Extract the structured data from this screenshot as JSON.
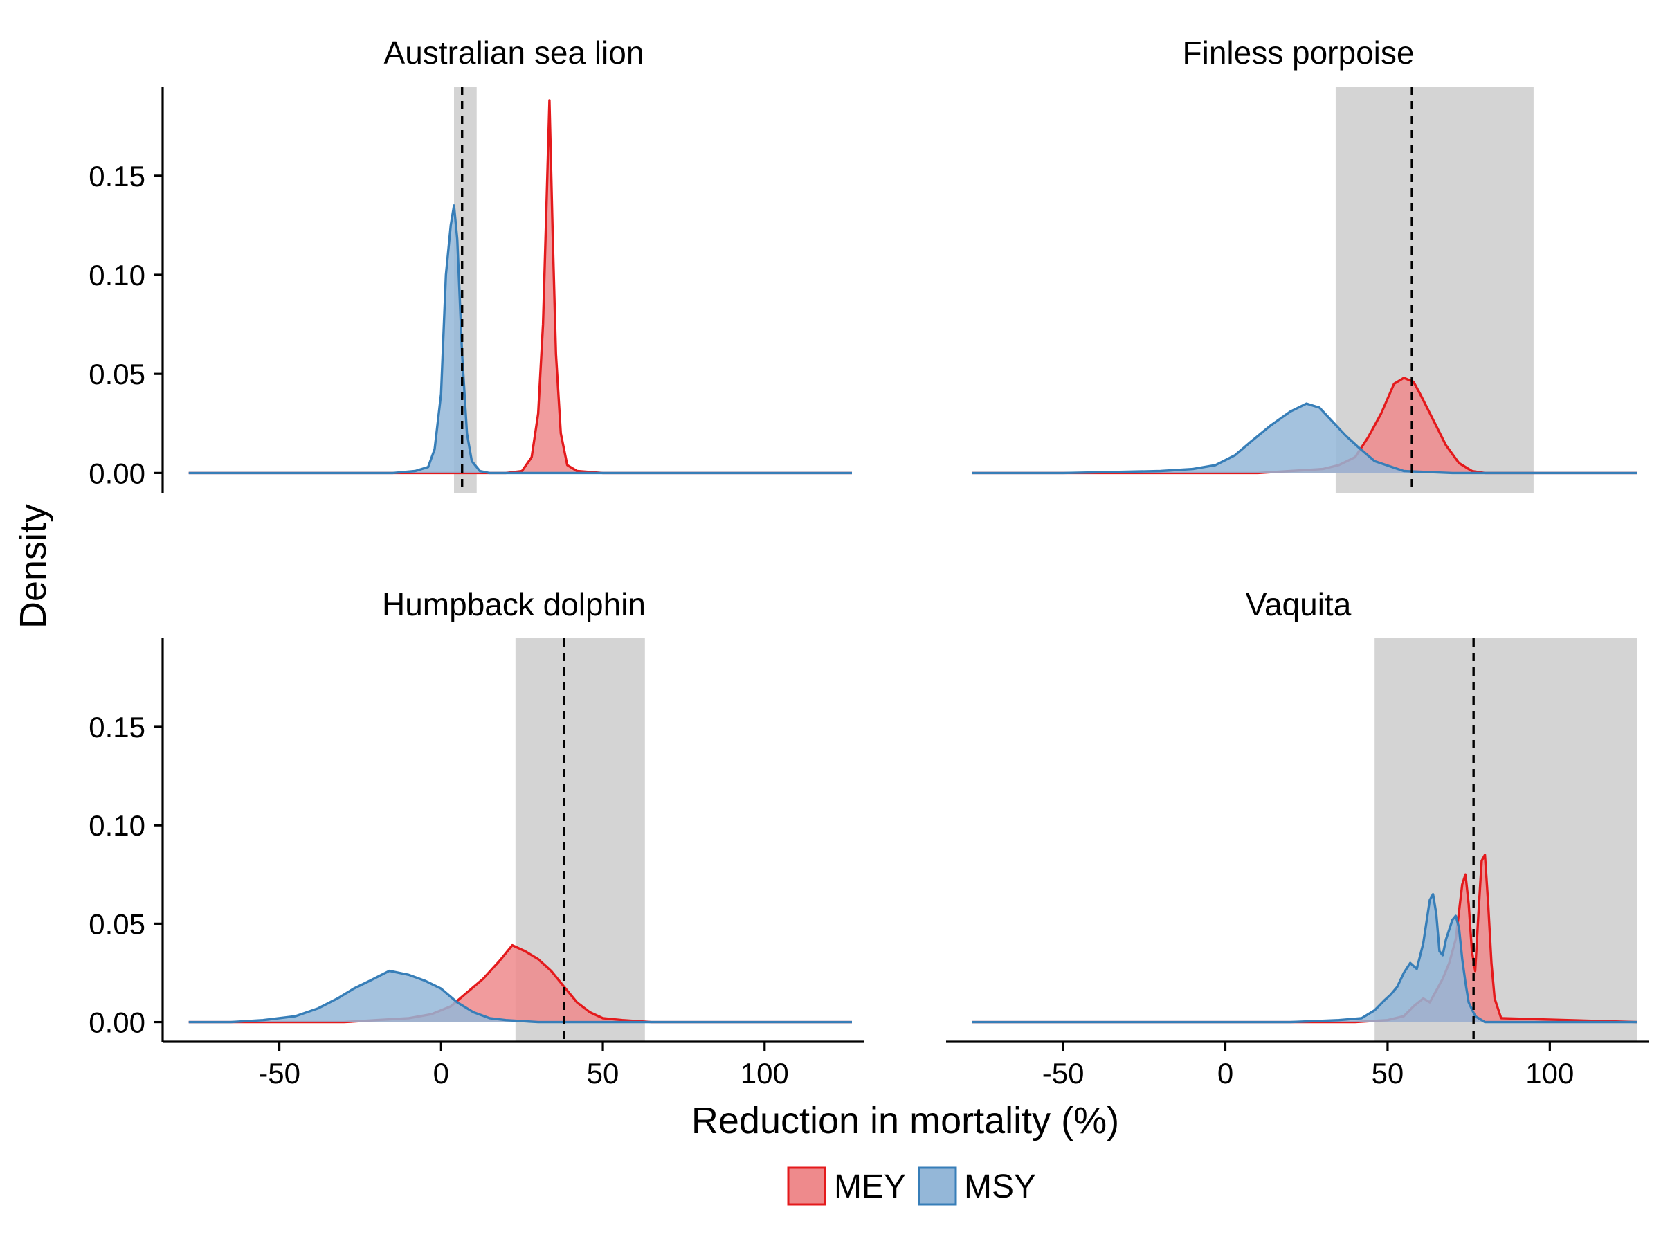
{
  "chart_data": {
    "type": "area",
    "subtype": "density, faceted 2x2",
    "xlabel": "Reduction in mortality (%)",
    "ylabel": "Density",
    "xlim": [
      -85,
      130
    ],
    "ylim": [
      -0.01,
      0.195
    ],
    "x_ticks": [
      -50,
      0,
      50,
      100
    ],
    "y_ticks": [
      0.0,
      0.05,
      0.1,
      0.15
    ],
    "y_tick_labels": [
      "0.00",
      "0.05",
      "0.10",
      "0.15"
    ],
    "grid": false,
    "legend": {
      "position": "bottom",
      "entries": [
        {
          "label": "MEY",
          "fill": "#ee8a8c",
          "stroke": "#e41a1c"
        },
        {
          "label": "MSY",
          "fill": "#94b7d8",
          "stroke": "#377eb8"
        }
      ]
    },
    "colors": {
      "MEY_fill": "#ee8a8c",
      "MEY_line": "#e41a1c",
      "MSY_fill": "#94b7d8",
      "MSY_line": "#377eb8",
      "band": "#d4d4d4"
    },
    "panels": [
      {
        "title": "Australian sea lion",
        "dashed_line_x": 6.5,
        "band": [
          4,
          11
        ],
        "series": [
          {
            "name": "MEY",
            "x": [
              -78,
              20,
              25,
              28,
              30,
              31.5,
              32.5,
              33.5,
              34.5,
              35.5,
              37,
              39,
              42,
              50,
              127
            ],
            "y": [
              0,
              0,
              0.001,
              0.008,
              0.03,
              0.075,
              0.13,
              0.188,
              0.12,
              0.06,
              0.02,
              0.004,
              0.001,
              0,
              0
            ]
          },
          {
            "name": "MSY",
            "x": [
              -78,
              -15,
              -8,
              -4,
              -2,
              0,
              1.5,
              3,
              4,
              5,
              6.5,
              8,
              9.5,
              12,
              15,
              127
            ],
            "y": [
              0,
              0,
              0.001,
              0.003,
              0.012,
              0.04,
              0.1,
              0.125,
              0.135,
              0.118,
              0.06,
              0.02,
              0.006,
              0.001,
              0,
              0
            ]
          }
        ]
      },
      {
        "title": "Finless porpoise",
        "dashed_line_x": 57.5,
        "band": [
          34,
          95
        ],
        "series": [
          {
            "name": "MEY",
            "x": [
              -78,
              10,
              20,
              30,
              35,
              40,
              44,
              48,
              52,
              55,
              58,
              60,
              64,
              68,
              72,
              76,
              80,
              127
            ],
            "y": [
              0,
              0,
              0.001,
              0.002,
              0.004,
              0.008,
              0.018,
              0.03,
              0.045,
              0.048,
              0.046,
              0.04,
              0.027,
              0.014,
              0.005,
              0.001,
              0,
              0
            ]
          },
          {
            "name": "MSY",
            "x": [
              -78,
              -50,
              -20,
              -10,
              -3,
              3,
              8,
              14,
              20,
              25,
              29,
              33,
              37,
              41,
              46,
              55,
              70,
              127
            ],
            "y": [
              0,
              0,
              0.001,
              0.002,
              0.004,
              0.009,
              0.016,
              0.024,
              0.031,
              0.035,
              0.033,
              0.026,
              0.019,
              0.013,
              0.006,
              0.001,
              0,
              0
            ]
          }
        ]
      },
      {
        "title": "Humpback dolphin",
        "dashed_line_x": 38,
        "band": [
          23,
          63
        ],
        "series": [
          {
            "name": "MEY",
            "x": [
              -78,
              -30,
              -20,
              -10,
              -3,
              3,
              8,
              13,
              18,
              22,
              26,
              30,
              34,
              38,
              42,
              46,
              50,
              56,
              65,
              127
            ],
            "y": [
              0,
              0,
              0.001,
              0.002,
              0.004,
              0.008,
              0.015,
              0.022,
              0.031,
              0.039,
              0.036,
              0.032,
              0.026,
              0.018,
              0.01,
              0.005,
              0.002,
              0.001,
              0,
              0
            ]
          },
          {
            "name": "MSY",
            "x": [
              -78,
              -65,
              -55,
              -45,
              -38,
              -32,
              -27,
              -22,
              -16,
              -10,
              -5,
              0,
              5,
              10,
              15,
              20,
              30,
              127
            ],
            "y": [
              0,
              0,
              0.001,
              0.003,
              0.007,
              0.012,
              0.017,
              0.021,
              0.026,
              0.024,
              0.021,
              0.017,
              0.01,
              0.005,
              0.002,
              0.001,
              0,
              0
            ]
          }
        ]
      },
      {
        "title": "Vaquita",
        "dashed_line_x": 76.5,
        "band": [
          46,
          127
        ],
        "series": [
          {
            "name": "MEY",
            "x": [
              -78,
              40,
              50,
              55,
              58,
              61,
              63,
              65,
              67,
              69,
              71,
              73,
              74,
              75,
              76,
              77,
              78,
              79,
              80,
              81,
              82,
              83,
              85,
              127
            ],
            "y": [
              0,
              0,
              0.001,
              0.003,
              0.008,
              0.012,
              0.01,
              0.016,
              0.022,
              0.03,
              0.042,
              0.07,
              0.075,
              0.06,
              0.036,
              0.026,
              0.055,
              0.082,
              0.085,
              0.06,
              0.03,
              0.012,
              0.002,
              0
            ]
          },
          {
            "name": "MSY",
            "x": [
              -78,
              20,
              35,
              42,
              46,
              49,
              51,
              53,
              55,
              57,
              59,
              61,
              63,
              64,
              65,
              66,
              67,
              68,
              70,
              71,
              72,
              73,
              74,
              75,
              77,
              80,
              127
            ],
            "y": [
              0,
              0,
              0.001,
              0.002,
              0.006,
              0.011,
              0.014,
              0.018,
              0.025,
              0.03,
              0.027,
              0.04,
              0.062,
              0.065,
              0.055,
              0.036,
              0.034,
              0.042,
              0.052,
              0.054,
              0.048,
              0.032,
              0.02,
              0.01,
              0.003,
              0,
              0
            ]
          }
        ]
      }
    ]
  }
}
